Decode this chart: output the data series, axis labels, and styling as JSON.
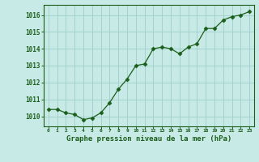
{
  "x": [
    0,
    1,
    2,
    3,
    4,
    5,
    6,
    7,
    8,
    9,
    10,
    11,
    12,
    13,
    14,
    15,
    16,
    17,
    18,
    19,
    20,
    21,
    22,
    23
  ],
  "y": [
    1010.4,
    1010.4,
    1010.2,
    1010.1,
    1009.8,
    1009.9,
    1010.2,
    1010.8,
    1011.6,
    1012.2,
    1013.0,
    1013.1,
    1014.0,
    1014.1,
    1014.0,
    1013.7,
    1014.1,
    1014.3,
    1015.2,
    1015.2,
    1015.7,
    1015.9,
    1016.0,
    1016.2
  ],
  "line_color": "#1a5e1a",
  "marker": "D",
  "marker_size": 2.5,
  "bg_color": "#c8eae6",
  "grid_color": "#9ecfca",
  "xlabel": "Graphe pression niveau de la mer (hPa)",
  "xlabel_color": "#1a5e1a",
  "tick_color": "#1a5e1a",
  "yticks": [
    1010,
    1011,
    1012,
    1013,
    1014,
    1015,
    1016
  ],
  "ylim": [
    1009.4,
    1016.6
  ],
  "xlim": [
    -0.5,
    23.5
  ],
  "xtick_labels": [
    "0",
    "1",
    "2",
    "3",
    "4",
    "5",
    "6",
    "7",
    "8",
    "9",
    "10",
    "11",
    "12",
    "13",
    "14",
    "15",
    "16",
    "17",
    "18",
    "19",
    "20",
    "21",
    "22",
    "23"
  ]
}
